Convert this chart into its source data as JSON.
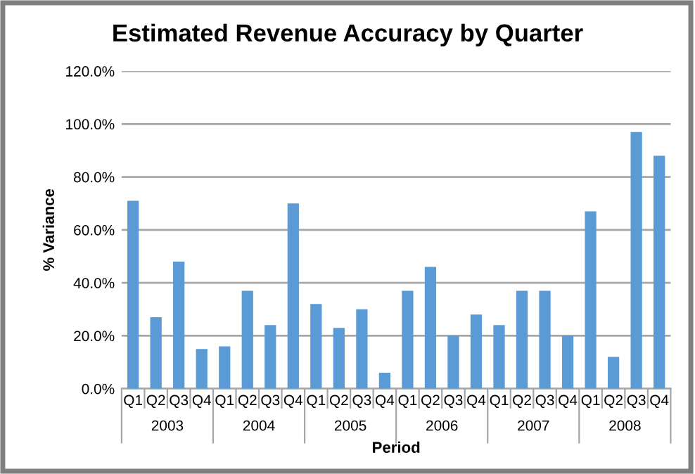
{
  "chart_data": {
    "type": "bar",
    "title": "Estimated Revenue Accuracy by Quarter",
    "xlabel": "Period",
    "ylabel": "% Variance",
    "categories": [
      "Q1",
      "Q2",
      "Q3",
      "Q4",
      "Q1",
      "Q2",
      "Q3",
      "Q4",
      "Q1",
      "Q2",
      "Q3",
      "Q4",
      "Q1",
      "Q2",
      "Q3",
      "Q4",
      "Q1",
      "Q2",
      "Q3",
      "Q4",
      "Q1",
      "Q2",
      "Q3",
      "Q4"
    ],
    "series": [
      {
        "color": "#5b9bd5",
        "values": [
          71,
          27,
          48,
          15,
          16,
          37,
          24,
          70,
          32,
          23,
          30,
          6,
          37,
          46,
          20,
          28,
          24,
          37,
          37,
          20,
          67,
          12,
          97,
          88
        ]
      }
    ],
    "annotations": [
      "2003",
      "2004",
      "2005",
      "2006",
      "2007",
      "2008"
    ],
    "ylim": [
      0,
      120
    ],
    "yticks": [
      {
        "value": 0,
        "label": "0.0%"
      },
      {
        "value": 20,
        "label": "20.0%"
      },
      {
        "value": 40,
        "label": "40.0%"
      },
      {
        "value": 60,
        "label": "60.0%"
      },
      {
        "value": 80,
        "label": "80.0%"
      },
      {
        "value": 100,
        "label": "100.0%"
      },
      {
        "value": 120,
        "label": "120.0%"
      }
    ],
    "grid": "y"
  }
}
